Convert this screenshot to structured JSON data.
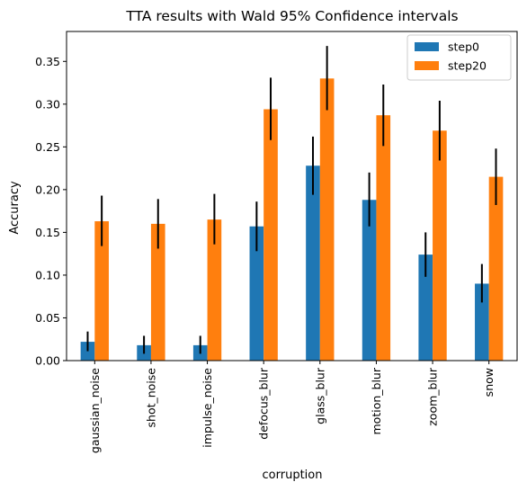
{
  "chart_data": {
    "type": "bar",
    "title": "TTA results with Wald 95% Confidence intervals",
    "xlabel": "corruption",
    "ylabel": "Accuracy",
    "categories": [
      "gaussian_noise",
      "shot_noise",
      "impulse_noise",
      "defocus_blur",
      "glass_blur",
      "motion_blur",
      "zoom_blur",
      "snow"
    ],
    "ylim": [
      0,
      0.385
    ],
    "yticks": [
      "0.00",
      "0.05",
      "0.10",
      "0.15",
      "0.20",
      "0.25",
      "0.30",
      "0.35"
    ],
    "legend_position": "top-right",
    "grid": false,
    "series": [
      {
        "name": "step0",
        "color": "#1f77b4",
        "values": [
          0.022,
          0.018,
          0.018,
          0.157,
          0.228,
          0.188,
          0.124,
          0.09
        ],
        "ci_low": [
          0.011,
          0.008,
          0.008,
          0.128,
          0.194,
          0.157,
          0.098,
          0.068
        ],
        "ci_high": [
          0.034,
          0.029,
          0.029,
          0.186,
          0.262,
          0.22,
          0.15,
          0.113
        ]
      },
      {
        "name": "step20",
        "color": "#ff7f0e",
        "values": [
          0.163,
          0.16,
          0.165,
          0.294,
          0.33,
          0.287,
          0.269,
          0.215
        ],
        "ci_low": [
          0.134,
          0.131,
          0.136,
          0.258,
          0.293,
          0.251,
          0.234,
          0.182
        ],
        "ci_high": [
          0.193,
          0.189,
          0.195,
          0.331,
          0.368,
          0.323,
          0.304,
          0.248
        ]
      }
    ]
  }
}
